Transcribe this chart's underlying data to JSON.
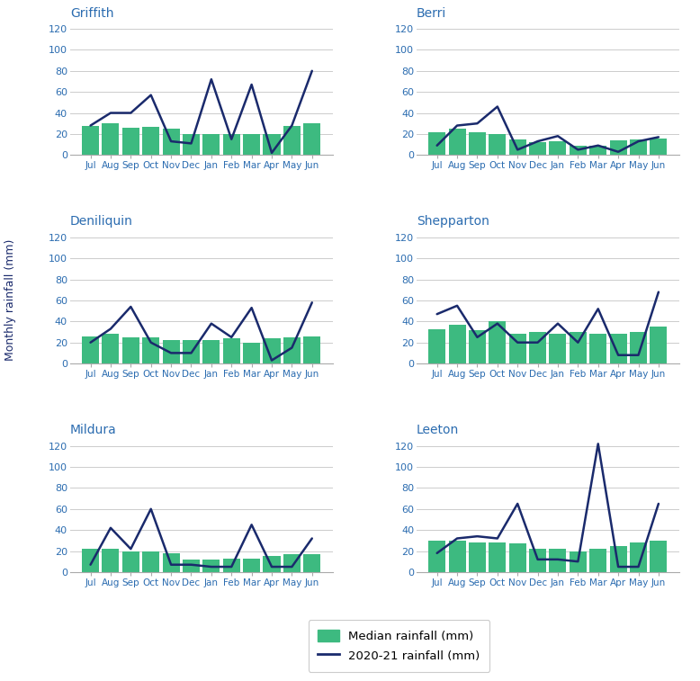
{
  "months": [
    "Jul",
    "Aug",
    "Sep",
    "Oct",
    "Nov",
    "Dec",
    "Jan",
    "Feb",
    "Mar",
    "Apr",
    "May",
    "Jun"
  ],
  "stations": {
    "Griffith": {
      "median": [
        28,
        30,
        26,
        27,
        25,
        20,
        20,
        20,
        20,
        20,
        28,
        30
      ],
      "observed": [
        28,
        40,
        40,
        57,
        13,
        11,
        72,
        15,
        67,
        2,
        28,
        80
      ]
    },
    "Berri": {
      "median": [
        22,
        25,
        22,
        20,
        15,
        12,
        13,
        9,
        9,
        14,
        15,
        16
      ],
      "observed": [
        9,
        28,
        30,
        46,
        5,
        13,
        18,
        5,
        9,
        3,
        13,
        17
      ]
    },
    "Deniliquin": {
      "median": [
        26,
        28,
        25,
        25,
        22,
        22,
        22,
        24,
        20,
        24,
        25,
        26
      ],
      "observed": [
        20,
        33,
        54,
        20,
        10,
        10,
        38,
        25,
        53,
        3,
        15,
        58
      ]
    },
    "Shepparton": {
      "median": [
        33,
        37,
        32,
        40,
        28,
        30,
        28,
        30,
        28,
        28,
        30,
        35
      ],
      "observed": [
        47,
        55,
        25,
        38,
        20,
        20,
        38,
        20,
        52,
        8,
        8,
        68
      ]
    },
    "Mildura": {
      "median": [
        22,
        22,
        20,
        20,
        18,
        12,
        12,
        13,
        13,
        15,
        17,
        17
      ],
      "observed": [
        7,
        42,
        22,
        60,
        7,
        7,
        5,
        5,
        45,
        5,
        5,
        32
      ]
    },
    "Leeton": {
      "median": [
        30,
        30,
        28,
        28,
        27,
        22,
        22,
        20,
        22,
        25,
        28,
        30
      ],
      "observed": [
        18,
        32,
        34,
        32,
        65,
        12,
        12,
        10,
        122,
        5,
        5,
        65
      ]
    }
  },
  "subplot_order": [
    "Griffith",
    "Berri",
    "Deniliquin",
    "Shepparton",
    "Mildura",
    "Leeton"
  ],
  "ylim": [
    0,
    130
  ],
  "yticks": [
    0,
    20,
    40,
    60,
    80,
    100,
    120
  ],
  "bar_color": "#3dba80",
  "line_color": "#1a2a6c",
  "title_color": "#2b6cb0",
  "tick_label_color": "#2b6cb0",
  "axis_label": "Monthly rainfall (mm)",
  "legend_bar_label": "Median rainfall (mm)",
  "legend_line_label": "2020-21 rainfall (mm)",
  "bg_color": "#ffffff",
  "grid_color": "#cccccc"
}
